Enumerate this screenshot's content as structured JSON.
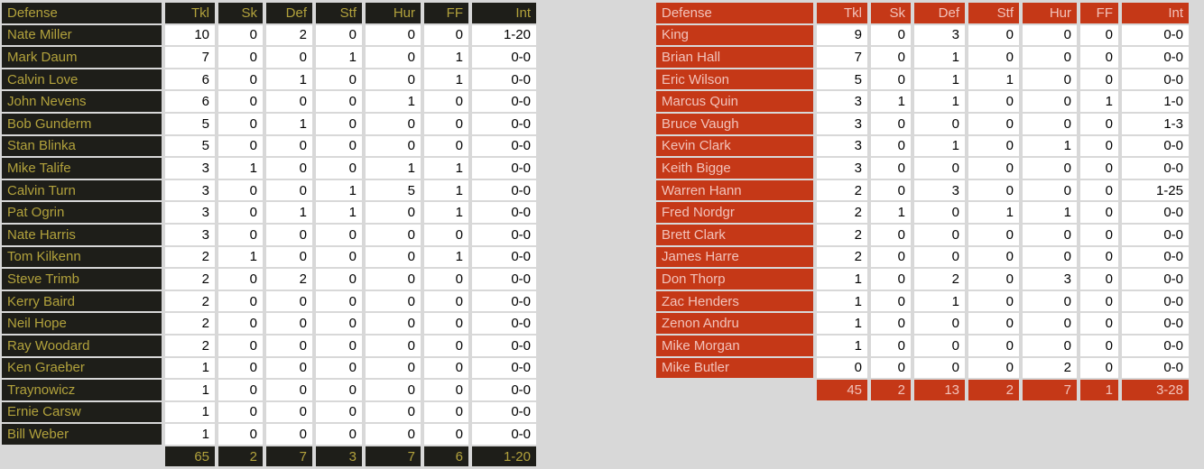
{
  "page": {
    "background_color": "#d8d8d8",
    "description": "Defense statistics tables"
  },
  "tables": [
    {
      "name_header": "Defense",
      "columns": [
        "Tkl",
        "Sk",
        "Def",
        "Stf",
        "Hur",
        "FF",
        "Int"
      ],
      "colors": {
        "accent_bg": "#1e1e19",
        "accent_text": "#b2a23c",
        "value_bg": "#ffffff",
        "value_text": "#000000"
      },
      "rows": [
        {
          "name": "Nate Miller",
          "values": [
            "10",
            "0",
            "2",
            "0",
            "0",
            "0",
            "1-20"
          ]
        },
        {
          "name": "Mark Daum",
          "values": [
            "7",
            "0",
            "0",
            "1",
            "0",
            "1",
            "0-0"
          ]
        },
        {
          "name": "Calvin Love",
          "values": [
            "6",
            "0",
            "1",
            "0",
            "0",
            "1",
            "0-0"
          ]
        },
        {
          "name": "John Nevens",
          "values": [
            "6",
            "0",
            "0",
            "0",
            "1",
            "0",
            "0-0"
          ]
        },
        {
          "name": "Bob Gunderm",
          "values": [
            "5",
            "0",
            "1",
            "0",
            "0",
            "0",
            "0-0"
          ]
        },
        {
          "name": "Stan Blinka",
          "values": [
            "5",
            "0",
            "0",
            "0",
            "0",
            "0",
            "0-0"
          ]
        },
        {
          "name": "Mike Talife",
          "values": [
            "3",
            "1",
            "0",
            "0",
            "1",
            "1",
            "0-0"
          ]
        },
        {
          "name": "Calvin Turn",
          "values": [
            "3",
            "0",
            "0",
            "1",
            "5",
            "1",
            "0-0"
          ]
        },
        {
          "name": "Pat Ogrin",
          "values": [
            "3",
            "0",
            "1",
            "1",
            "0",
            "1",
            "0-0"
          ]
        },
        {
          "name": "Nate Harris",
          "values": [
            "3",
            "0",
            "0",
            "0",
            "0",
            "0",
            "0-0"
          ]
        },
        {
          "name": "Tom Kilkenn",
          "values": [
            "2",
            "1",
            "0",
            "0",
            "0",
            "1",
            "0-0"
          ]
        },
        {
          "name": "Steve Trimb",
          "values": [
            "2",
            "0",
            "2",
            "0",
            "0",
            "0",
            "0-0"
          ]
        },
        {
          "name": "Kerry Baird",
          "values": [
            "2",
            "0",
            "0",
            "0",
            "0",
            "0",
            "0-0"
          ]
        },
        {
          "name": "Neil Hope",
          "values": [
            "2",
            "0",
            "0",
            "0",
            "0",
            "0",
            "0-0"
          ]
        },
        {
          "name": "Ray Woodard",
          "values": [
            "2",
            "0",
            "0",
            "0",
            "0",
            "0",
            "0-0"
          ]
        },
        {
          "name": "Ken Graeber",
          "values": [
            "1",
            "0",
            "0",
            "0",
            "0",
            "0",
            "0-0"
          ]
        },
        {
          "name": "Traynowicz",
          "values": [
            "1",
            "0",
            "0",
            "0",
            "0",
            "0",
            "0-0"
          ]
        },
        {
          "name": "Ernie Carsw",
          "values": [
            "1",
            "0",
            "0",
            "0",
            "0",
            "0",
            "0-0"
          ]
        },
        {
          "name": "Bill Weber",
          "values": [
            "1",
            "0",
            "0",
            "0",
            "0",
            "0",
            "0-0"
          ]
        }
      ],
      "totals": [
        "65",
        "2",
        "7",
        "3",
        "7",
        "6",
        "1-20"
      ]
    },
    {
      "name_header": "Defense",
      "columns": [
        "Tkl",
        "Sk",
        "Def",
        "Stf",
        "Hur",
        "FF",
        "Int"
      ],
      "colors": {
        "accent_bg": "#c53817",
        "accent_text": "#f2c3bb",
        "value_bg": "#ffffff",
        "value_text": "#000000"
      },
      "rows": [
        {
          "name": "King",
          "values": [
            "9",
            "0",
            "3",
            "0",
            "0",
            "0",
            "0-0"
          ]
        },
        {
          "name": "Brian Hall",
          "values": [
            "7",
            "0",
            "1",
            "0",
            "0",
            "0",
            "0-0"
          ]
        },
        {
          "name": "Eric Wilson",
          "values": [
            "5",
            "0",
            "1",
            "1",
            "0",
            "0",
            "0-0"
          ]
        },
        {
          "name": "Marcus Quin",
          "values": [
            "3",
            "1",
            "1",
            "0",
            "0",
            "1",
            "1-0"
          ]
        },
        {
          "name": "Bruce Vaugh",
          "values": [
            "3",
            "0",
            "0",
            "0",
            "0",
            "0",
            "1-3"
          ]
        },
        {
          "name": "Kevin Clark",
          "values": [
            "3",
            "0",
            "1",
            "0",
            "1",
            "0",
            "0-0"
          ]
        },
        {
          "name": "Keith Bigge",
          "values": [
            "3",
            "0",
            "0",
            "0",
            "0",
            "0",
            "0-0"
          ]
        },
        {
          "name": "Warren Hann",
          "values": [
            "2",
            "0",
            "3",
            "0",
            "0",
            "0",
            "1-25"
          ]
        },
        {
          "name": "Fred Nordgr",
          "values": [
            "2",
            "1",
            "0",
            "1",
            "1",
            "0",
            "0-0"
          ]
        },
        {
          "name": "Brett Clark",
          "values": [
            "2",
            "0",
            "0",
            "0",
            "0",
            "0",
            "0-0"
          ]
        },
        {
          "name": "James Harre",
          "values": [
            "2",
            "0",
            "0",
            "0",
            "0",
            "0",
            "0-0"
          ]
        },
        {
          "name": "Don Thorp",
          "values": [
            "1",
            "0",
            "2",
            "0",
            "3",
            "0",
            "0-0"
          ]
        },
        {
          "name": "Zac Henders",
          "values": [
            "1",
            "0",
            "1",
            "0",
            "0",
            "0",
            "0-0"
          ]
        },
        {
          "name": "Zenon Andru",
          "values": [
            "1",
            "0",
            "0",
            "0",
            "0",
            "0",
            "0-0"
          ]
        },
        {
          "name": "Mike Morgan",
          "values": [
            "1",
            "0",
            "0",
            "0",
            "0",
            "0",
            "0-0"
          ]
        },
        {
          "name": "Mike Butler",
          "values": [
            "0",
            "0",
            "0",
            "0",
            "2",
            "0",
            "0-0"
          ]
        }
      ],
      "totals": [
        "45",
        "2",
        "13",
        "2",
        "7",
        "1",
        "3-28"
      ]
    }
  ]
}
